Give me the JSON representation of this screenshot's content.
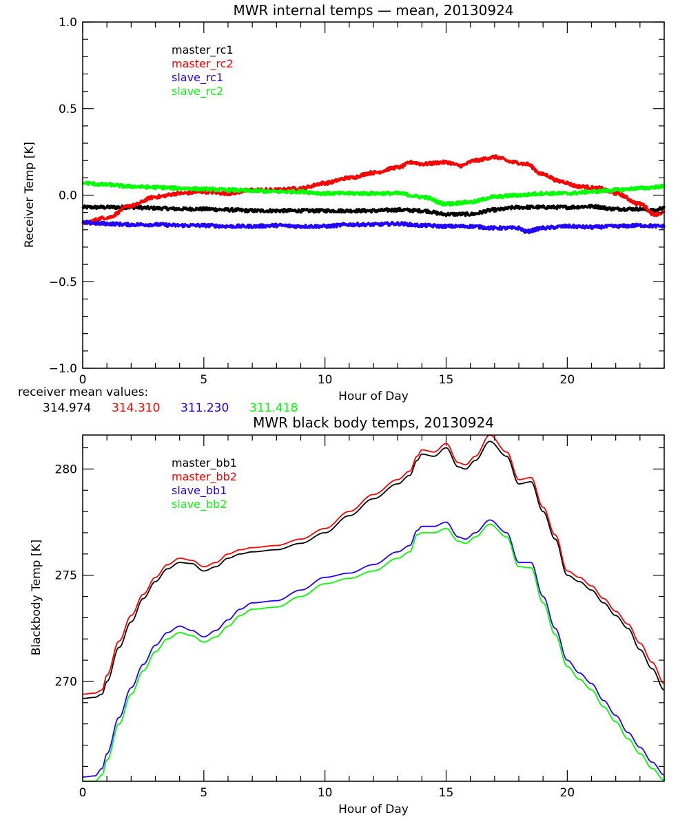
{
  "colors": {
    "black": "#000000",
    "red": "#ff0000",
    "blue": "#2200ff",
    "green": "#00ff00"
  },
  "receiver_means": {
    "label": "receiver mean values:",
    "values": [
      {
        "text": "314.974",
        "color": "#000000"
      },
      {
        "text": "314.310",
        "color": "#ff0000"
      },
      {
        "text": "311.230",
        "color": "#2200ff"
      },
      {
        "text": "311.418",
        "color": "#00ff00"
      }
    ]
  },
  "chart_data": [
    {
      "type": "line",
      "title": "MWR internal temps — mean, 20130924",
      "xlabel": "Hour of Day",
      "ylabel": "Receiver Temp [K]",
      "xlim": [
        0,
        24
      ],
      "ylim": [
        -1.0,
        1.0
      ],
      "xticks": [
        0,
        5,
        10,
        15,
        20
      ],
      "xtick_labels": [
        "0",
        "5",
        "10",
        "15",
        "20"
      ],
      "x_minor_step": 1,
      "yticks": [
        -1.0,
        -0.5,
        0.0,
        0.5,
        1.0
      ],
      "ytick_labels": [
        "−1.0",
        "−0.5",
        "0.0",
        "0.5",
        "1.0"
      ],
      "y_minor_step": 0.1,
      "grid": false,
      "legend_position": "upper-left",
      "noisy": true,
      "series": [
        {
          "name": "master_rc1",
          "color": "#000000",
          "x": [
            0,
            1,
            2,
            3,
            4,
            5,
            6,
            7,
            8,
            9,
            10,
            11,
            12,
            13,
            14,
            15,
            16,
            17,
            18,
            19,
            20,
            21,
            22,
            23,
            23.6,
            24
          ],
          "y": [
            -0.07,
            -0.07,
            -0.07,
            -0.075,
            -0.08,
            -0.08,
            -0.085,
            -0.09,
            -0.09,
            -0.09,
            -0.09,
            -0.09,
            -0.09,
            -0.085,
            -0.09,
            -0.11,
            -0.11,
            -0.085,
            -0.07,
            -0.07,
            -0.07,
            -0.065,
            -0.08,
            -0.08,
            -0.09,
            -0.07
          ]
        },
        {
          "name": "master_rc2",
          "color": "#ff0000",
          "x": [
            0,
            1,
            2,
            3,
            4,
            5,
            6,
            7,
            8,
            9,
            10,
            11,
            12,
            13,
            13.6,
            14,
            15,
            15.6,
            16.2,
            17,
            17.8,
            18.3,
            19,
            19.7,
            20.5,
            21.3,
            22,
            23,
            23.6,
            24
          ],
          "y": [
            -0.16,
            -0.13,
            -0.06,
            -0.01,
            0.01,
            0.02,
            0.01,
            0.03,
            0.03,
            0.04,
            0.07,
            0.1,
            0.13,
            0.16,
            0.19,
            0.18,
            0.19,
            0.17,
            0.2,
            0.22,
            0.19,
            0.18,
            0.12,
            0.08,
            0.05,
            0.04,
            0.01,
            -0.05,
            -0.11,
            -0.1
          ]
        },
        {
          "name": "slave_rc1",
          "color": "#2200ff",
          "x": [
            0,
            1,
            2,
            3,
            4,
            5,
            6,
            7,
            8,
            9,
            10,
            11,
            12,
            13,
            14,
            15,
            16,
            17,
            18,
            18.3,
            19,
            20,
            21,
            22,
            23,
            24
          ],
          "y": [
            -0.16,
            -0.165,
            -0.17,
            -0.17,
            -0.175,
            -0.175,
            -0.18,
            -0.18,
            -0.175,
            -0.18,
            -0.18,
            -0.17,
            -0.17,
            -0.165,
            -0.175,
            -0.18,
            -0.18,
            -0.19,
            -0.19,
            -0.21,
            -0.19,
            -0.18,
            -0.185,
            -0.18,
            -0.175,
            -0.18
          ]
        },
        {
          "name": "slave_rc2",
          "color": "#00ff00",
          "x": [
            0,
            1,
            2,
            3,
            4,
            5,
            6,
            7,
            8,
            9,
            10,
            11,
            12,
            13,
            14,
            15,
            16,
            17,
            18,
            19,
            20,
            21,
            22,
            23,
            24
          ],
          "y": [
            0.07,
            0.06,
            0.05,
            0.045,
            0.04,
            0.035,
            0.03,
            0.025,
            0.02,
            0.02,
            0.01,
            0.01,
            0.01,
            0.01,
            -0.01,
            -0.05,
            -0.04,
            -0.01,
            0.0,
            0.01,
            0.01,
            0.02,
            0.03,
            0.04,
            0.05
          ]
        }
      ]
    },
    {
      "type": "line",
      "title": "MWR black body temps, 20130924",
      "xlabel": "Hour of Day",
      "ylabel": "Blackbody Temp [K]",
      "xlim": [
        0,
        24
      ],
      "ylim": [
        265.3,
        281.6
      ],
      "xticks": [
        0,
        5,
        10,
        15,
        20
      ],
      "xtick_labels": [
        "0",
        "5",
        "10",
        "15",
        "20"
      ],
      "x_minor_step": 1,
      "yticks": [
        270,
        275,
        280
      ],
      "ytick_labels": [
        "270",
        "275",
        "280"
      ],
      "y_minor_step": 1,
      "grid": false,
      "legend_position": "upper-left",
      "noisy": false,
      "series": [
        {
          "name": "master_bb1",
          "color": "#000000",
          "x": [
            0,
            0.5,
            0.8,
            1,
            1.5,
            2,
            2.5,
            3,
            3.5,
            4,
            4.5,
            5,
            5.5,
            6,
            6.5,
            7,
            8,
            9,
            10,
            11,
            12,
            13,
            13.5,
            13.8,
            14,
            14.5,
            15,
            15.5,
            15.8,
            16.2,
            16.8,
            17.5,
            18,
            18.5,
            19,
            19.5,
            20,
            20.5,
            21,
            21.5,
            22,
            22.5,
            23,
            23.5,
            24
          ],
          "y": [
            269.2,
            269.25,
            269.4,
            270.0,
            271.6,
            272.8,
            273.9,
            274.7,
            275.3,
            275.6,
            275.55,
            275.2,
            275.4,
            275.8,
            276.0,
            276.1,
            276.2,
            276.5,
            277.0,
            277.8,
            278.6,
            279.3,
            279.7,
            280.4,
            280.7,
            280.6,
            281.0,
            280.1,
            280.0,
            280.4,
            281.3,
            280.6,
            279.3,
            279.4,
            278.0,
            276.7,
            275.0,
            274.7,
            274.3,
            273.7,
            273.1,
            272.5,
            271.5,
            270.6,
            269.6
          ]
        },
        {
          "name": "master_bb2",
          "color": "#ff0000",
          "x": [
            0,
            0.5,
            0.8,
            1,
            1.5,
            2,
            2.5,
            3,
            3.5,
            4,
            4.5,
            5,
            5.5,
            6,
            6.5,
            7,
            8,
            9,
            10,
            11,
            12,
            13,
            13.5,
            13.8,
            14,
            14.5,
            15,
            15.5,
            15.8,
            16.2,
            16.8,
            17.5,
            18,
            18.5,
            19,
            19.5,
            20,
            20.5,
            21,
            21.5,
            22,
            22.5,
            23,
            23.5,
            24
          ],
          "y": [
            269.4,
            269.45,
            269.6,
            270.3,
            271.9,
            273.1,
            274.1,
            274.9,
            275.5,
            275.8,
            275.7,
            275.4,
            275.6,
            276.0,
            276.2,
            276.3,
            276.4,
            276.7,
            277.2,
            278.0,
            278.8,
            279.5,
            279.9,
            280.6,
            280.9,
            280.8,
            281.2,
            280.3,
            280.2,
            280.6,
            281.6,
            280.8,
            279.5,
            279.6,
            278.2,
            276.9,
            275.2,
            274.9,
            274.5,
            273.9,
            273.3,
            272.7,
            271.8,
            270.9,
            269.9
          ]
        },
        {
          "name": "slave_bb1",
          "color": "#2200ff",
          "x": [
            0,
            0.5,
            0.8,
            1,
            1.5,
            2,
            2.5,
            3,
            3.5,
            4,
            4.5,
            5,
            5.5,
            6,
            6.5,
            7,
            8,
            9,
            10,
            11,
            12,
            13,
            13.5,
            13.8,
            14,
            14.5,
            15,
            15.5,
            15.8,
            16.2,
            16.8,
            17.5,
            18,
            18.5,
            19,
            19.5,
            20,
            20.5,
            21,
            21.5,
            22,
            22.5,
            23,
            23.5,
            24
          ],
          "y": [
            265.5,
            265.55,
            265.9,
            266.6,
            268.3,
            269.7,
            270.8,
            271.7,
            272.3,
            272.6,
            272.4,
            272.1,
            272.4,
            272.9,
            273.4,
            273.7,
            273.8,
            274.3,
            274.9,
            275.1,
            275.5,
            276.1,
            276.4,
            277.1,
            277.3,
            277.3,
            277.5,
            276.8,
            276.7,
            277.0,
            277.6,
            277.0,
            275.6,
            275.6,
            274.0,
            272.5,
            271.0,
            270.4,
            269.9,
            269.1,
            268.4,
            267.6,
            266.9,
            266.2,
            265.6
          ]
        },
        {
          "name": "slave_bb2",
          "color": "#00ff00",
          "x": [
            0,
            0.5,
            0.8,
            1,
            1.5,
            2,
            2.5,
            3,
            3.5,
            4,
            4.5,
            5,
            5.5,
            6,
            6.5,
            7,
            8,
            9,
            10,
            11,
            12,
            13,
            13.5,
            13.8,
            14,
            14.5,
            15,
            15.5,
            15.8,
            16.2,
            16.8,
            17.5,
            18,
            18.5,
            19,
            19.5,
            20,
            20.5,
            21,
            21.5,
            22,
            22.5,
            23,
            23.5,
            24
          ],
          "y": [
            265.3,
            265.3,
            265.6,
            266.3,
            268.0,
            269.4,
            270.5,
            271.4,
            272.0,
            272.3,
            272.15,
            271.85,
            272.1,
            272.6,
            273.1,
            273.4,
            273.5,
            274.0,
            274.6,
            274.85,
            275.2,
            275.8,
            276.1,
            276.9,
            277.0,
            277.0,
            277.2,
            276.6,
            276.5,
            276.8,
            277.4,
            276.8,
            275.4,
            275.35,
            273.7,
            272.2,
            270.7,
            270.1,
            269.6,
            268.8,
            268.1,
            267.3,
            266.6,
            265.9,
            265.35
          ]
        }
      ]
    }
  ]
}
